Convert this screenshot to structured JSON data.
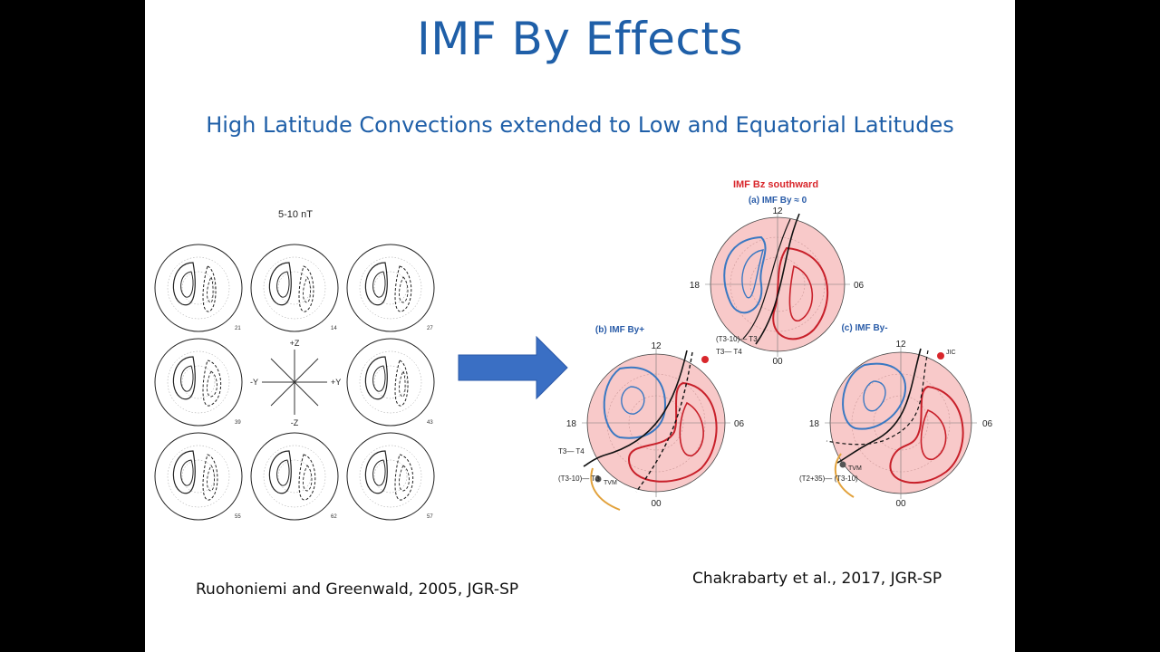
{
  "slide": {
    "title": "IMF By Effects",
    "subtitle": "High Latitude Convections extended to Low and Equatorial Latitudes",
    "left_caption": "Ruohoniemi and Greenwald, 2005, JGR-SP",
    "right_caption": "Chakrabarty et al., 2017, JGR-SP"
  },
  "left_figure": {
    "heading": "5-10 nT",
    "axis_labels": {
      "top": "+Z",
      "bottom": "-Z",
      "left": "-Y",
      "right": "+Y"
    },
    "panel_numbers": [
      "21",
      "14",
      "27",
      "39",
      "43",
      "55",
      "62",
      "57"
    ]
  },
  "right_figure": {
    "heading": "IMF Bz southward",
    "panels": [
      {
        "label": "(a) IMF By ≈ 0",
        "hours": {
          "top": "12",
          "left": "18",
          "right": "06",
          "bottom": "00"
        }
      },
      {
        "label": "(b) IMF By+",
        "hours": {
          "top": "12",
          "left": "18",
          "right": "06",
          "bottom": "00"
        },
        "annotations": [
          "(T3-10)— T3",
          "T3— T4",
          "T3— T4",
          "(T3-10)— T3",
          "TVM"
        ]
      },
      {
        "label": "(c) IMF By-",
        "hours": {
          "top": "12",
          "left": "18",
          "right": "06",
          "bottom": "00"
        },
        "annotations": [
          "(T2+35)— (T3-10)",
          "TVM",
          "JIC"
        ]
      }
    ]
  },
  "colors": {
    "title": "#1f5fa8",
    "arrow": "#3a6fc4",
    "red_heading": "#d8262b",
    "blue_label": "#2a5ca8",
    "disk_fill": "#f8c9c9",
    "blue_cell": "#3a78c2",
    "red_cell": "#c8202a"
  }
}
